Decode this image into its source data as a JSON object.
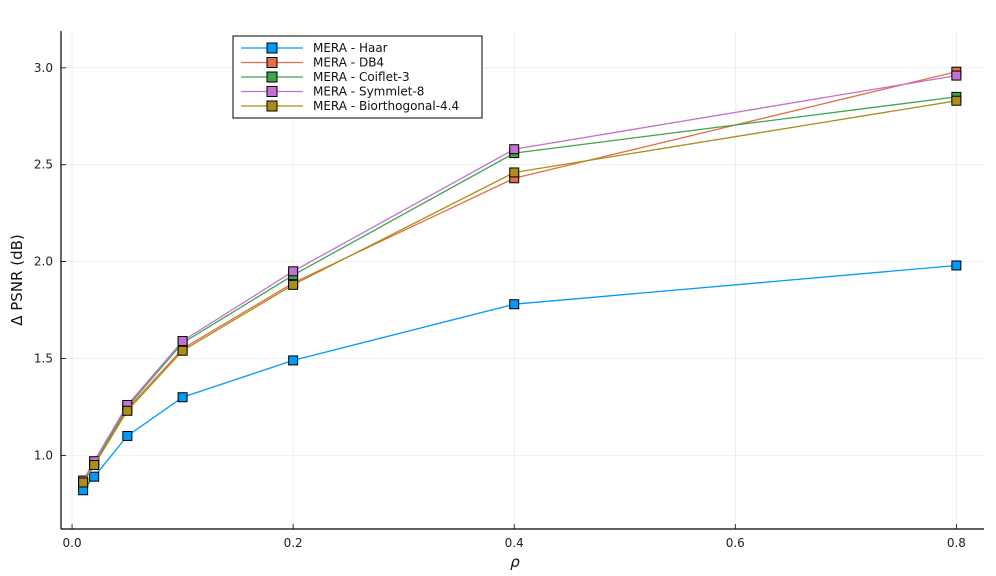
{
  "chart_data": {
    "type": "line",
    "title": "",
    "xlabel": "ρ",
    "ylabel": "Δ PSNR (dB)",
    "xlim": [
      -0.01,
      0.825
    ],
    "ylim": [
      0.62,
      3.19
    ],
    "xticks": [
      0.0,
      0.2,
      0.4,
      0.6,
      0.8
    ],
    "xtick_labels": [
      "0.0",
      "0.2",
      "0.4",
      "0.6",
      "0.8"
    ],
    "yticks": [
      1.0,
      1.5,
      2.0,
      2.5,
      3.0
    ],
    "ytick_labels": [
      "1.0",
      "1.5",
      "2.0",
      "2.5",
      "3.0"
    ],
    "grid": true,
    "legend_position": "top-left",
    "marker": "square",
    "x": [
      0.01,
      0.02,
      0.05,
      0.1,
      0.2,
      0.4,
      0.8
    ],
    "series": [
      {
        "name": "MERA - Haar",
        "color": "#009AFA",
        "values": [
          0.82,
          0.89,
          1.1,
          1.3,
          1.49,
          1.78,
          1.98
        ]
      },
      {
        "name": "MERA - DB4",
        "color": "#E26F46",
        "values": [
          0.86,
          0.96,
          1.24,
          1.55,
          1.89,
          2.43,
          2.98
        ]
      },
      {
        "name": "MERA - Coiflet-3",
        "color": "#3EA44E",
        "values": [
          0.86,
          0.96,
          1.25,
          1.58,
          1.93,
          2.56,
          2.85
        ]
      },
      {
        "name": "MERA - Symmlet-8",
        "color": "#C271D2",
        "values": [
          0.87,
          0.97,
          1.26,
          1.59,
          1.95,
          2.58,
          2.96
        ]
      },
      {
        "name": "MERA - Biorthogonal-4.4",
        "color": "#AC8E18",
        "values": [
          0.86,
          0.95,
          1.23,
          1.54,
          1.88,
          2.46,
          2.83
        ]
      }
    ]
  }
}
